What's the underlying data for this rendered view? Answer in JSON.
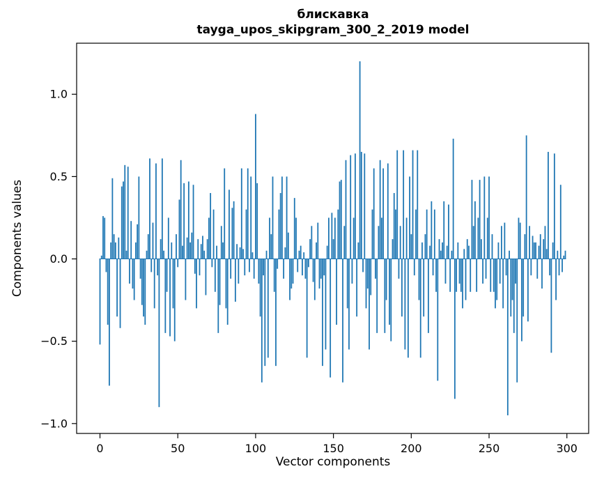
{
  "chart_data": {
    "type": "bar",
    "title_lines": [
      "блискавка",
      "tayga_upos_skipgram_300_2_2019 model"
    ],
    "xlabel": "Vector components",
    "ylabel": "Components values",
    "bar_color": "#1f77b4",
    "axis_color": "#000000",
    "grid": false,
    "legend": null,
    "xticks": [
      0,
      50,
      100,
      150,
      200,
      250,
      300
    ],
    "yticks": [
      -1.0,
      -0.5,
      0.0,
      0.5,
      1.0
    ],
    "xlim": [
      -15,
      314
    ],
    "ylim": [
      -1.06,
      1.31
    ],
    "values": [
      -0.52,
      0.02,
      0.26,
      0.25,
      -0.08,
      -0.4,
      -0.77,
      0.1,
      0.49,
      0.15,
      0.1,
      -0.35,
      0.13,
      -0.42,
      0.44,
      0.47,
      0.57,
      0.05,
      0.56,
      -0.15,
      0.23,
      -0.18,
      -0.25,
      0.1,
      0.21,
      0.5,
      -0.12,
      -0.28,
      -0.35,
      -0.4,
      0.05,
      0.15,
      0.61,
      -0.08,
      0.22,
      -0.3,
      0.58,
      -0.1,
      -0.9,
      0.12,
      0.61,
      0.05,
      -0.45,
      -0.2,
      0.25,
      -0.47,
      0.1,
      -0.3,
      -0.5,
      0.15,
      -0.05,
      0.36,
      0.6,
      0.08,
      0.46,
      -0.25,
      0.13,
      0.47,
      0.1,
      0.16,
      0.45,
      -0.09,
      -0.3,
      0.12,
      -0.1,
      0.09,
      0.14,
      0.05,
      -0.22,
      0.12,
      0.25,
      0.4,
      -0.05,
      0.3,
      -0.2,
      0.08,
      -0.45,
      -0.28,
      0.2,
      0.1,
      0.55,
      -0.3,
      -0.4,
      0.42,
      -0.12,
      0.31,
      0.35,
      -0.26,
      0.09,
      -0.15,
      0.07,
      0.55,
      0.06,
      -0.1,
      0.3,
      0.55,
      -0.08,
      0.5,
      0.04,
      -0.12,
      0.88,
      0.46,
      -0.15,
      -0.35,
      -0.75,
      -0.1,
      -0.65,
      0.05,
      -0.6,
      0.25,
      0.15,
      0.5,
      -0.2,
      -0.65,
      -0.06,
      0.3,
      0.4,
      0.5,
      -0.12,
      0.07,
      0.5,
      0.16,
      -0.25,
      -0.18,
      -0.15,
      0.37,
      0.25,
      -0.08,
      0.05,
      0.08,
      -0.1,
      0.04,
      -0.12,
      -0.6,
      -0.05,
      0.12,
      0.2,
      -0.14,
      -0.25,
      0.1,
      0.22,
      -0.18,
      -0.12,
      -0.65,
      -0.1,
      -0.55,
      0.08,
      0.25,
      -0.72,
      0.28,
      0.12,
      0.25,
      -0.4,
      0.3,
      0.47,
      0.48,
      -0.75,
      0.2,
      0.6,
      -0.3,
      -0.55,
      0.63,
      -0.15,
      0.25,
      0.64,
      -0.35,
      0.1,
      1.2,
      0.65,
      -0.08,
      0.64,
      -0.3,
      -0.18,
      -0.55,
      -0.22,
      0.3,
      0.55,
      -0.12,
      -0.45,
      0.2,
      0.6,
      0.25,
      0.55,
      -0.45,
      -0.25,
      0.58,
      -0.4,
      -0.5,
      0.12,
      0.4,
      0.3,
      0.66,
      -0.12,
      0.2,
      -0.35,
      0.66,
      -0.55,
      0.25,
      -0.6,
      0.5,
      0.15,
      0.66,
      -0.1,
      0.3,
      0.66,
      -0.25,
      -0.6,
      0.1,
      -0.35,
      0.15,
      0.3,
      -0.45,
      0.08,
      0.35,
      -0.1,
      0.3,
      -0.2,
      -0.74,
      0.12,
      0.05,
      0.1,
      0.35,
      -0.15,
      0.08,
      0.33,
      -0.2,
      0.05,
      0.73,
      -0.85,
      -0.2,
      0.1,
      -0.15,
      -0.2,
      -0.3,
      0.06,
      -0.25,
      0.12,
      0.08,
      -0.2,
      0.48,
      0.2,
      0.35,
      -0.2,
      0.25,
      0.48,
      0.12,
      -0.15,
      0.5,
      -0.12,
      0.25,
      0.5,
      -0.2,
      0.15,
      -0.2,
      -0.3,
      -0.25,
      0.1,
      -0.15,
      0.2,
      -0.3,
      0.22,
      -0.1,
      -0.95,
      0.05,
      -0.35,
      -0.25,
      -0.45,
      -0.15,
      -0.75,
      0.25,
      0.22,
      -0.5,
      -0.35,
      0.15,
      0.75,
      -0.38,
      0.2,
      -0.1,
      0.14,
      0.1,
      0.1,
      -0.12,
      0.08,
      0.15,
      -0.18,
      0.12,
      0.2,
      0.06,
      0.65,
      -0.1,
      -0.57,
      0.1,
      0.64,
      -0.25,
      0.05,
      -0.1,
      0.45,
      -0.08,
      0.02,
      0.05
    ]
  }
}
